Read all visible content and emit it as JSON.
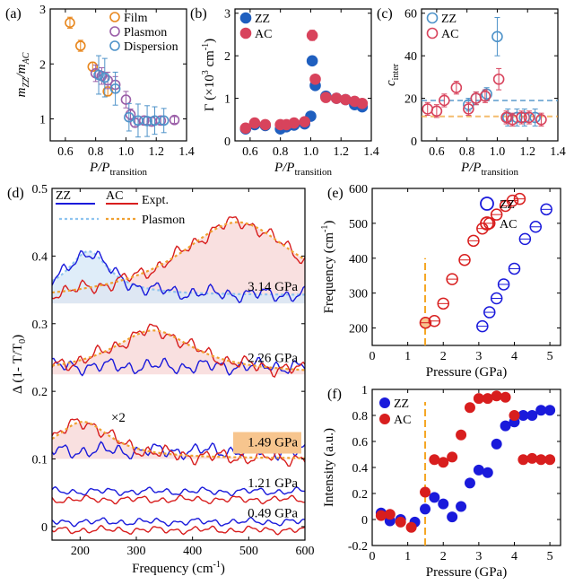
{
  "colors": {
    "orange": "#E8871E",
    "purple": "#9B5FA8",
    "cyan": "#4F93C9",
    "blue": "#1F5FBF",
    "red": "#D8435C",
    "dblue": "#1A1ADB",
    "dred": "#D81E1E",
    "lightblue": "#8EC4F0",
    "lorange": "#F0A030",
    "pink_fill": "#F7D5D5",
    "blue_fill": "#D7E8F7",
    "highlight": "#F7C58E",
    "dash_orange": "#F5A623"
  },
  "chart_data": [
    {
      "id": "a",
      "panel_label": "(a)",
      "type": "scatter",
      "xlabel": "P/P",
      "xlabel_sub": "transition",
      "ylabel": "m",
      "ylabel_sub1": "ZZ",
      "ylabel_mid": "/m",
      "ylabel_sub2": "AC",
      "xlim": [
        0.5,
        1.4
      ],
      "ylim": [
        0.6,
        3.0
      ],
      "xticks": [
        "0.6",
        "0.8",
        "1.0",
        "1.2",
        "1.4"
      ],
      "xtick_values": [
        0.6,
        0.8,
        1.0,
        1.2,
        1.4
      ],
      "yticks": [
        "1",
        "2",
        "3"
      ],
      "ytick_values": [
        1,
        2,
        3
      ],
      "legend": [
        "Film",
        "Plasmon",
        "Dispersion"
      ],
      "series": [
        {
          "name": "Film",
          "color": "orange",
          "fill": "orange",
          "x": [
            0.63,
            0.7,
            0.78,
            0.88
          ],
          "y": [
            2.75,
            2.33,
            1.95,
            1.5
          ],
          "err": [
            0.1,
            0.1,
            0.08,
            0.08
          ]
        },
        {
          "name": "Plasmon",
          "color": "purple",
          "fill": "none",
          "x": [
            0.8,
            0.84,
            0.88,
            0.93,
            1.0,
            1.03,
            1.06,
            1.12,
            1.17,
            1.23,
            1.32
          ],
          "y": [
            1.83,
            1.78,
            1.7,
            1.62,
            1.35,
            1.08,
            0.93,
            0.97,
            0.95,
            0.97,
            0.98
          ],
          "err": [
            0.15,
            0.15,
            0.15,
            0.15,
            0.15,
            0.1,
            0.08,
            0.08,
            0.08,
            0.08,
            0.06
          ]
        },
        {
          "name": "Dispersion",
          "color": "cyan",
          "fill": "none",
          "x": [
            0.82,
            0.86,
            0.93,
            1.02,
            1.08,
            1.14,
            1.19,
            1.25
          ],
          "y": [
            1.8,
            1.75,
            1.55,
            1.03,
            0.97,
            0.96,
            0.97,
            0.97
          ],
          "err": [
            0.35,
            0.35,
            0.3,
            0.25,
            0.3,
            0.28,
            0.25,
            0.22
          ]
        }
      ]
    },
    {
      "id": "b",
      "panel_label": "(b)",
      "type": "scatter",
      "xlabel": "P/P",
      "xlabel_sub": "transition",
      "ylabel": "Γ (×10",
      "ylabel_sup": "3",
      "ylabel_end": " cm",
      "ylabel_sup2": "-1",
      "ylabel_close": ")",
      "xlim": [
        0.5,
        1.4
      ],
      "ylim": [
        0,
        3.1
      ],
      "xticks": [
        "0.6",
        "0.8",
        "1.0",
        "1.2",
        "1.4"
      ],
      "xtick_values": [
        0.6,
        0.8,
        1.0,
        1.2,
        1.4
      ],
      "yticks": [
        "0",
        "1",
        "2",
        "3"
      ],
      "ytick_values": [
        0,
        1,
        2,
        3
      ],
      "legend": [
        "ZZ",
        "AC"
      ],
      "series": [
        {
          "name": "ZZ",
          "color": "blue",
          "x": [
            0.57,
            0.63,
            0.7,
            0.8,
            0.84,
            0.89,
            0.96,
            1.0,
            1.01,
            1.03,
            1.1,
            1.17,
            1.23,
            1.29,
            1.34
          ],
          "y": [
            0.28,
            0.38,
            0.36,
            0.28,
            0.33,
            0.37,
            0.4,
            0.58,
            1.88,
            1.3,
            1.05,
            1.0,
            0.97,
            0.85,
            0.8
          ],
          "err": [
            0,
            0,
            0,
            0,
            0,
            0,
            0,
            0,
            0,
            0,
            0,
            0,
            0,
            0,
            0
          ]
        },
        {
          "name": "AC",
          "color": "red",
          "x": [
            0.57,
            0.63,
            0.7,
            0.8,
            0.84,
            0.89,
            0.96,
            1.01,
            1.03,
            1.1,
            1.17,
            1.23,
            1.29,
            1.34
          ],
          "y": [
            0.3,
            0.42,
            0.38,
            0.38,
            0.38,
            0.42,
            0.45,
            2.48,
            1.45,
            1.02,
            1.0,
            0.97,
            0.93,
            0.88
          ],
          "err": [
            0.03,
            0.03,
            0.03,
            0.03,
            0.03,
            0.03,
            0.03,
            0.12,
            0.05,
            0.04,
            0.04,
            0.04,
            0.04,
            0.04
          ]
        }
      ]
    },
    {
      "id": "c",
      "panel_label": "(c)",
      "type": "scatter",
      "xlabel": "P/P",
      "xlabel_sub": "transition",
      "ylabel": "c",
      "ylabel_sub": "inter",
      "xlim": [
        0.5,
        1.4
      ],
      "ylim": [
        0,
        62
      ],
      "xticks": [
        "0.6",
        "0.8",
        "1.0",
        "1.2",
        "1.4"
      ],
      "xtick_values": [
        0.6,
        0.8,
        1.0,
        1.2,
        1.4
      ],
      "yticks": [
        "0",
        "20",
        "40",
        "60"
      ],
      "ytick_values": [
        0,
        20,
        40,
        60
      ],
      "legend": [
        "ZZ",
        "AC"
      ],
      "hlines": [
        {
          "y": 19,
          "color": "cyan"
        },
        {
          "y": 11.5,
          "color": "lorange"
        }
      ],
      "series": [
        {
          "name": "ZZ",
          "color": "cyan",
          "x": [
            0.81,
            0.86,
            0.93,
            1.0,
            1.07,
            1.13,
            1.18,
            1.25
          ],
          "y": [
            17,
            20,
            22,
            49,
            11,
            11,
            11,
            11
          ],
          "err": [
            3,
            3,
            3,
            9,
            4,
            4,
            4,
            4
          ]
        },
        {
          "name": "AC",
          "color": "red",
          "x": [
            0.54,
            0.6,
            0.65,
            0.73,
            0.81,
            0.86,
            0.92,
            1.01,
            1.06,
            1.1,
            1.16,
            1.21,
            1.29
          ],
          "y": [
            15,
            14,
            19,
            25,
            15,
            20,
            21,
            29,
            11,
            10,
            11,
            11,
            10
          ],
          "err": [
            3,
            3,
            3,
            3,
            3,
            3,
            3,
            5,
            3,
            3,
            3,
            3,
            3
          ]
        }
      ]
    },
    {
      "id": "d",
      "panel_label": "(d)",
      "type": "line",
      "xlabel": "Frequency (cm",
      "xlabel_sup": "-1",
      "xlabel_close": ")",
      "ylabel": "Δ (1- T/T",
      "ylabel_sub": "0",
      "ylabel_close": ")",
      "xlim": [
        150,
        600
      ],
      "ylim": [
        -0.02,
        0.5
      ],
      "xticks": [
        "200",
        "300",
        "400",
        "500",
        "600"
      ],
      "xtick_values": [
        200,
        300,
        400,
        500,
        600
      ],
      "yticks": [
        "0",
        "0.1",
        "0.2",
        "0.3",
        "0.4",
        "0.5"
      ],
      "ytick_values": [
        0,
        0.1,
        0.2,
        0.3,
        0.4,
        0.5
      ],
      "legend": [
        "ZZ",
        "AC",
        "Expt.",
        "Plasmon"
      ],
      "annotation_x2": "×2",
      "traces": [
        {
          "label": "3.14 GPa",
          "offset": 0.33,
          "highlight": false,
          "zz_plasmon": {
            "peak": 215,
            "height": 0.065,
            "width": 45
          },
          "ac_plasmon": {
            "peak": 480,
            "height": 0.12,
            "width": 130
          }
        },
        {
          "label": "2.26 GPa",
          "offset": 0.225,
          "highlight": false,
          "zz_plasmon": null,
          "ac_plasmon": {
            "peak": 330,
            "height": 0.065,
            "width": 90
          }
        },
        {
          "label": "1.49 GPa",
          "offset": 0.1,
          "highlight": true,
          "zz_plasmon": null,
          "ac_plasmon": {
            "peak": 205,
            "height": 0.055,
            "width": 60
          }
        },
        {
          "label": "1.21 GPa",
          "offset": 0.04,
          "highlight": false,
          "zz_plasmon": null,
          "ac_plasmon": null
        },
        {
          "label": "0.49 GPa",
          "offset": -0.005,
          "highlight": false,
          "zz_plasmon": null,
          "ac_plasmon": null
        }
      ]
    },
    {
      "id": "e",
      "panel_label": "(e)",
      "type": "scatter",
      "xlabel": "Pressure (GPa)",
      "ylabel": "Frequency (cm",
      "ylabel_sup": "-1",
      "ylabel_close": ")",
      "xlim": [
        0,
        5.3
      ],
      "ylim": [
        150,
        600
      ],
      "xticks": [
        "0",
        "1",
        "2",
        "3",
        "4",
        "5"
      ],
      "xtick_values": [
        0,
        1,
        2,
        3,
        4,
        5
      ],
      "yticks": [
        "200",
        "300",
        "400",
        "500",
        "600"
      ],
      "ytick_values": [
        200,
        300,
        400,
        500,
        600
      ],
      "legend": [
        "ZZ",
        "AC"
      ],
      "vline": 1.49,
      "vline_ymax": 400,
      "series": [
        {
          "name": "ZZ",
          "color": "dblue",
          "x": [
            3.1,
            3.3,
            3.5,
            3.7,
            4.0,
            4.3,
            4.6,
            4.9
          ],
          "y": [
            205,
            245,
            285,
            325,
            370,
            455,
            490,
            540
          ]
        },
        {
          "name": "AC",
          "color": "dred",
          "x": [
            1.5,
            1.75,
            2.0,
            2.25,
            2.6,
            2.85,
            3.1,
            3.3,
            3.5,
            3.75,
            3.95,
            4.15
          ],
          "y": [
            215,
            220,
            270,
            340,
            395,
            450,
            485,
            500,
            525,
            550,
            565,
            570
          ]
        }
      ]
    },
    {
      "id": "f",
      "panel_label": "(f)",
      "type": "scatter",
      "xlabel": "Pressure (GPa)",
      "ylabel": "Intensity (a.u.)",
      "xlim": [
        0,
        5.3
      ],
      "ylim": [
        -0.2,
        1.0
      ],
      "xticks": [
        "0",
        "1",
        "2",
        "3",
        "4",
        "5"
      ],
      "xtick_values": [
        0,
        1,
        2,
        3,
        4,
        5
      ],
      "yticks": [
        "-0.2",
        "0",
        "0.2",
        "0.4",
        "0.6",
        "0.8",
        "1"
      ],
      "ytick_values": [
        -0.2,
        0,
        0.2,
        0.4,
        0.6,
        0.8,
        1.0
      ],
      "legend": [
        "ZZ",
        "AC"
      ],
      "vline": 1.49,
      "series": [
        {
          "name": "ZZ",
          "color": "dblue",
          "x": [
            0.25,
            0.5,
            0.8,
            1.2,
            1.49,
            1.75,
            2.0,
            2.25,
            2.5,
            2.75,
            3.0,
            3.25,
            3.5,
            3.75,
            4.0,
            4.25,
            4.5,
            4.75,
            5.0
          ],
          "y": [
            0.05,
            -0.01,
            0.0,
            -0.02,
            0.08,
            0.17,
            0.12,
            0.02,
            0.1,
            0.28,
            0.38,
            0.36,
            0.58,
            0.72,
            0.75,
            0.8,
            0.8,
            0.84,
            0.84
          ]
        },
        {
          "name": "AC",
          "color": "dred",
          "x": [
            0.25,
            0.5,
            0.8,
            1.1,
            1.49,
            1.75,
            2.0,
            2.25,
            2.5,
            2.75,
            3.0,
            3.25,
            3.5,
            3.75,
            4.0,
            4.25,
            4.5,
            4.75,
            5.0
          ],
          "y": [
            0.03,
            0.04,
            -0.02,
            -0.06,
            0.21,
            0.46,
            0.44,
            0.48,
            0.65,
            0.86,
            0.93,
            0.93,
            0.95,
            0.94,
            0.8,
            0.46,
            0.47,
            0.46,
            0.46
          ]
        }
      ]
    }
  ]
}
